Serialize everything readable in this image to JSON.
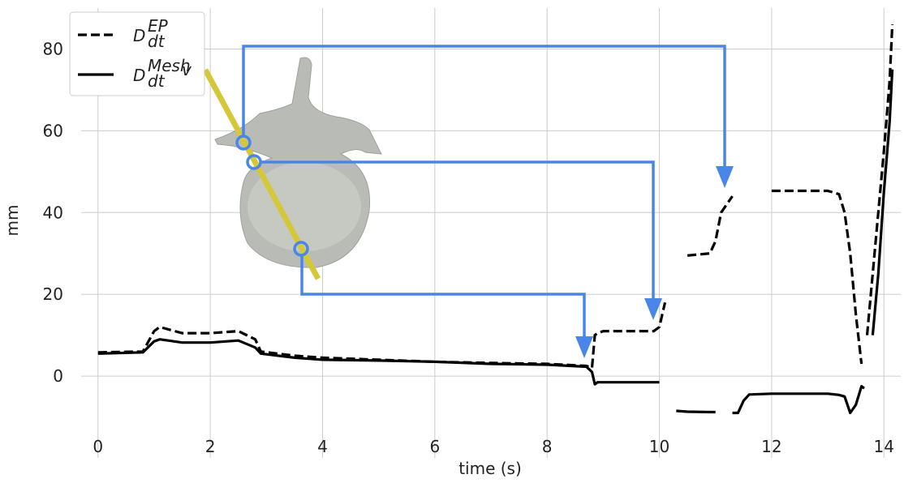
{
  "chart_data": {
    "type": "line",
    "xlabel": "time (s)",
    "ylabel": "mm",
    "x": [
      0,
      0.8,
      1.0,
      1.1,
      1.5,
      2,
      2.5,
      2.8,
      2.9,
      3.5,
      4,
      5,
      6,
      7,
      8,
      8.7,
      8.8,
      8.85,
      8.9,
      9,
      9.5,
      9.9,
      10,
      10.1,
      10.15,
      10.2,
      10.3,
      10.5,
      10.9,
      11,
      11.1,
      11.3,
      11.4,
      11.5,
      11.6,
      12,
      13,
      13.2,
      13.3,
      13.4,
      13.5,
      13.6,
      13.65,
      13.7,
      13.8,
      13.9,
      14,
      14.1,
      14.15
    ],
    "series": [
      {
        "name": "D",
        "sub": "dt",
        "sup": "EP",
        "color": "#000000",
        "dash": true,
        "values": [
          5.8,
          6,
          11,
          12,
          10.5,
          10.5,
          11,
          9,
          6,
          5,
          4.5,
          4,
          3.5,
          3.2,
          3,
          2.5,
          2,
          10,
          10.5,
          11,
          11,
          11,
          12,
          18,
          null,
          28,
          null,
          29.5,
          30,
          33,
          40,
          44,
          null,
          45,
          null,
          45.3,
          45.3,
          44.5,
          40,
          30,
          15,
          3,
          null,
          10,
          25,
          40,
          55,
          72,
          86
        ]
      },
      {
        "name": "D",
        "sub": "dt",
        "sup": "Mesh",
        "sup_sub": "v",
        "color": "#000000",
        "dash": false,
        "values": [
          5.5,
          5.8,
          8.5,
          9,
          8.2,
          8.2,
          8.7,
          7,
          5.5,
          4.5,
          4,
          3.8,
          3.5,
          3,
          2.8,
          2.3,
          1,
          -2,
          -1.5,
          -1.5,
          -1.5,
          -1.5,
          -1.5,
          null,
          -3,
          null,
          -8.5,
          -8.7,
          -8.8,
          -8.8,
          null,
          -9,
          -9,
          -6,
          -4.5,
          -4.3,
          -4.3,
          -4.6,
          -5,
          -9,
          -7,
          -2.5,
          -3,
          null,
          10,
          25,
          45,
          62,
          75
        ]
      }
    ],
    "xlim": [
      -0.3,
      14.3
    ],
    "ylim": [
      -20,
      90
    ],
    "xticks": [
      0,
      2,
      4,
      6,
      8,
      10,
      12,
      14
    ],
    "yticks": [
      0,
      20,
      40,
      60,
      80
    ],
    "grid": true,
    "legend": "upper left"
  }
}
